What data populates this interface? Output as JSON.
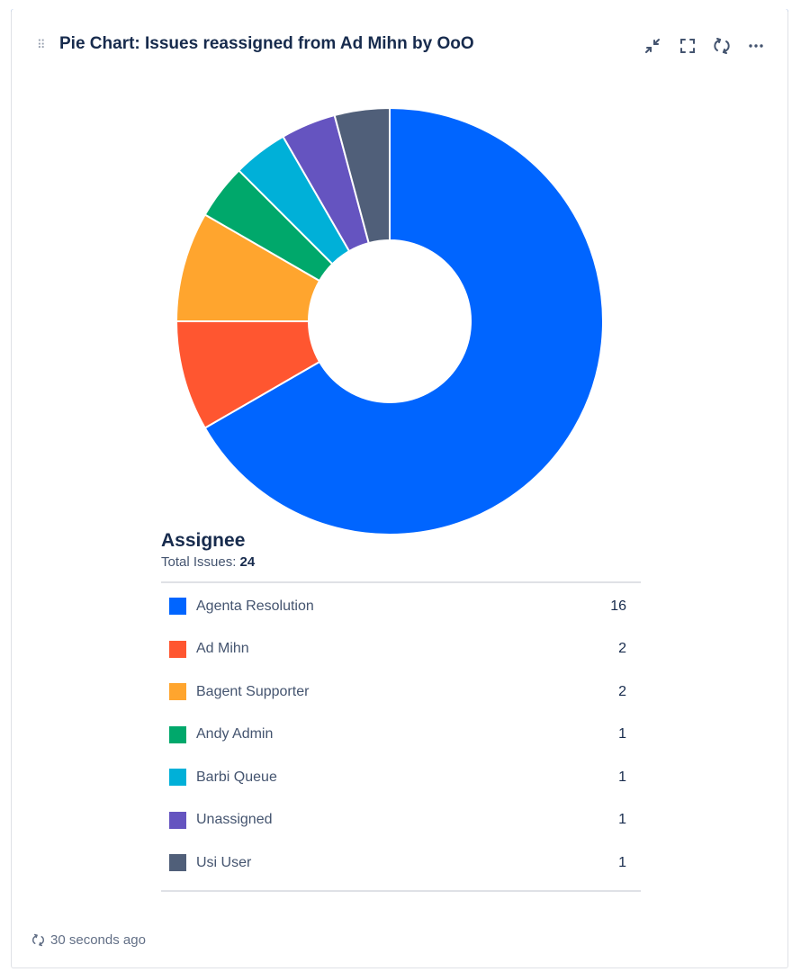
{
  "gadget": {
    "title": "Pie Chart: Issues reassigned from Ad Mihn by OoO",
    "accent_color": "#0c66e4",
    "header_icons": [
      "minimize-icon",
      "fullscreen-icon",
      "refresh-icon",
      "more-icon"
    ]
  },
  "legend": {
    "title": "Assignee",
    "total_label": "Total Issues:",
    "total_value": "24"
  },
  "chart_data": {
    "type": "pie",
    "style": "donut",
    "categories": [
      "Agenta Resolution",
      "Ad Mihn",
      "Bagent Supporter",
      "Andy Admin",
      "Barbi Queue",
      "Unassigned",
      "Usi User"
    ],
    "values": [
      16,
      2,
      2,
      1,
      1,
      1,
      1
    ],
    "colors": [
      "#0065ff",
      "#ff5630",
      "#ffa52e",
      "#00a86b",
      "#00b0d8",
      "#6554c0",
      "#505f79"
    ],
    "total": 24
  },
  "footer": {
    "updated": "30 seconds ago"
  }
}
